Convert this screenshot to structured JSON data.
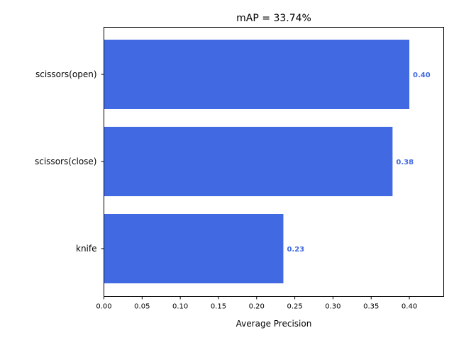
{
  "chart_data": {
    "type": "bar",
    "orientation": "horizontal",
    "title": "mAP = 33.74%",
    "xlabel": "Average Precision",
    "ylabel": "",
    "categories": [
      "scissors(open)",
      "scissors(close)",
      "knife"
    ],
    "values": [
      0.4,
      0.378,
      0.235
    ],
    "value_labels": [
      "0.40",
      "0.38",
      "0.23"
    ],
    "xlim": [
      0,
      0.445
    ],
    "xticks": [
      0.0,
      0.05,
      0.1,
      0.15,
      0.2,
      0.25,
      0.3,
      0.35,
      0.4
    ],
    "xtick_labels": [
      "0.00",
      "0.05",
      "0.10",
      "0.15",
      "0.20",
      "0.25",
      "0.30",
      "0.35",
      "0.40"
    ],
    "grid": false,
    "bar_color": "#4169e1",
    "label_color": "#4169e1"
  }
}
